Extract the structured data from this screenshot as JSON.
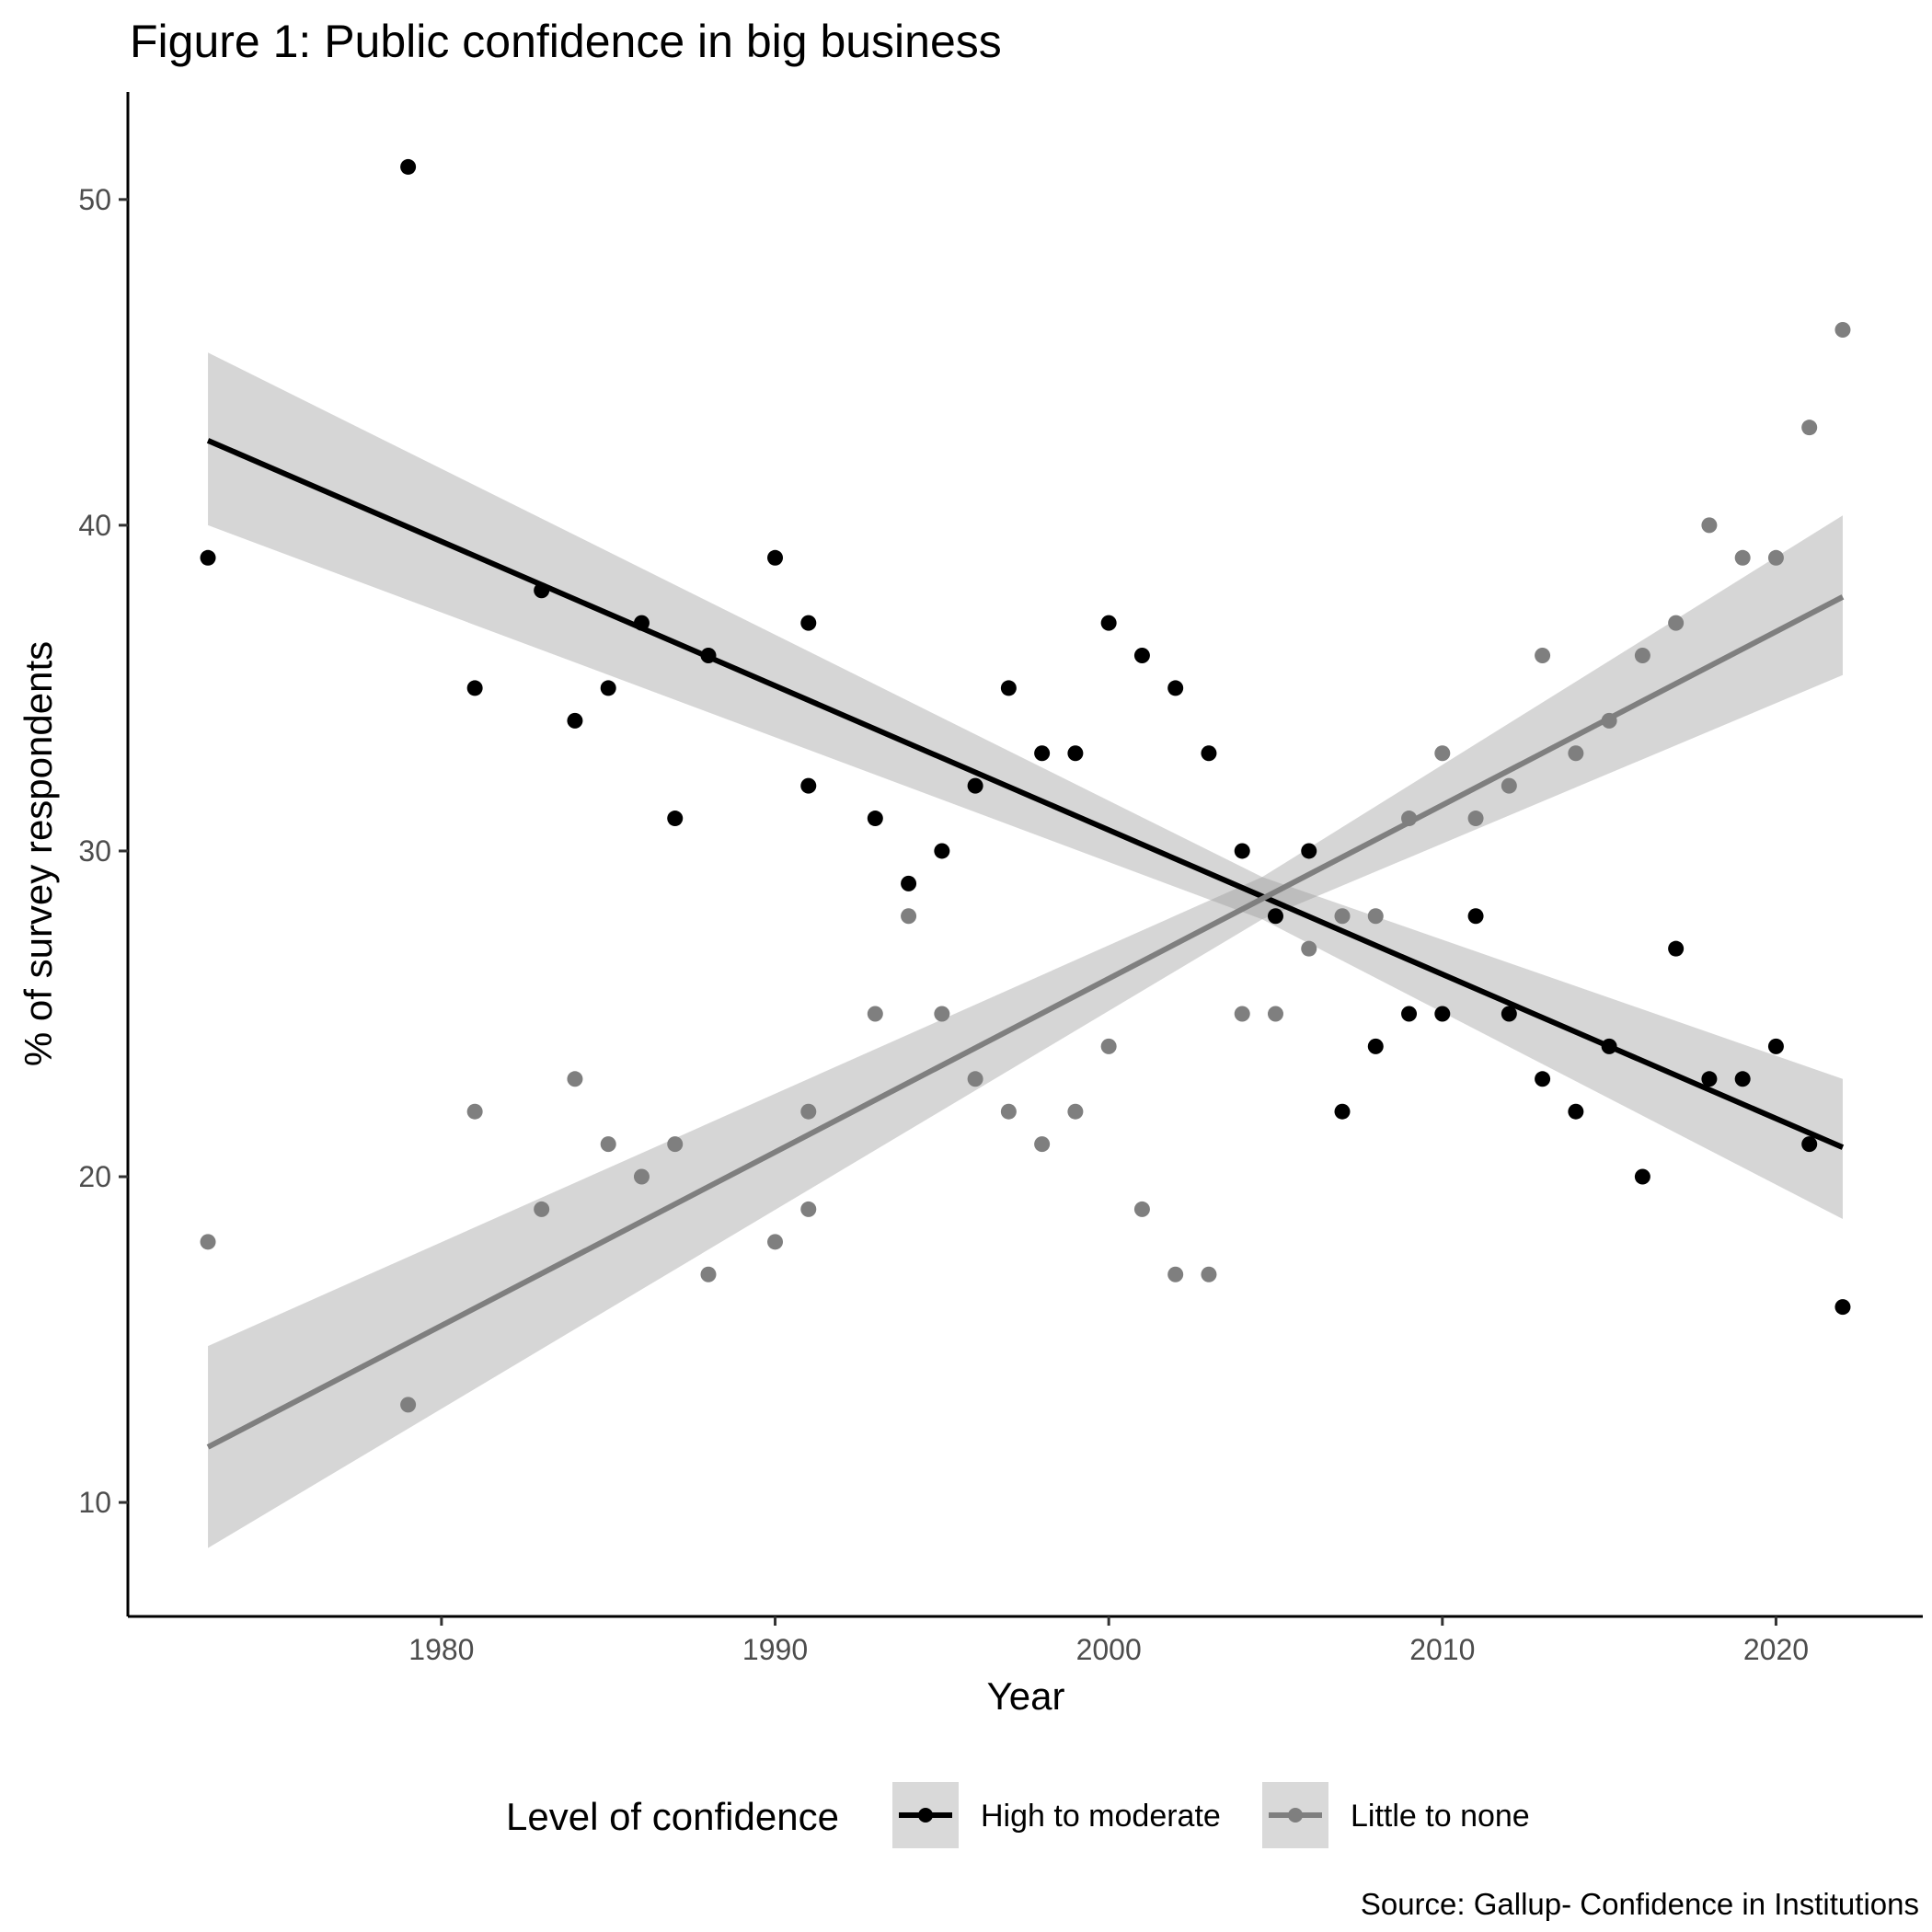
{
  "chart_data": {
    "type": "scatter",
    "title": "Figure 1: Public confidence in big business",
    "xlabel": "Year",
    "ylabel": "% of survey respondents",
    "caption": "Source: Gallup- Confidence in Institutions",
    "xlim": [
      1970.6,
      2024.4
    ],
    "ylim": [
      6.5,
      53.3
    ],
    "x_ticks": [
      1980,
      1990,
      2000,
      2010,
      2020
    ],
    "y_ticks": [
      10,
      20,
      30,
      40,
      50
    ],
    "grid": false,
    "legend": {
      "title": "Level of confidence",
      "position": "bottom",
      "entries": [
        "High to moderate",
        "Little to none"
      ]
    },
    "series": [
      {
        "name": "High to moderate",
        "color": "#000000",
        "points": [
          [
            1973,
            39
          ],
          [
            1979,
            51
          ],
          [
            1981,
            35
          ],
          [
            1983,
            38
          ],
          [
            1984,
            34
          ],
          [
            1985,
            35
          ],
          [
            1986,
            37
          ],
          [
            1987,
            31
          ],
          [
            1988,
            36
          ],
          [
            1990,
            39
          ],
          [
            1991,
            37
          ],
          [
            1991,
            32
          ],
          [
            1993,
            31
          ],
          [
            1994,
            29
          ],
          [
            1995,
            30
          ],
          [
            1996,
            32
          ],
          [
            1997,
            35
          ],
          [
            1998,
            33
          ],
          [
            1999,
            33
          ],
          [
            2000,
            37
          ],
          [
            2001,
            36
          ],
          [
            2002,
            35
          ],
          [
            2003,
            33
          ],
          [
            2004,
            30
          ],
          [
            2005,
            28
          ],
          [
            2006,
            30
          ],
          [
            2007,
            22
          ],
          [
            2008,
            24
          ],
          [
            2009,
            25
          ],
          [
            2010,
            25
          ],
          [
            2011,
            28
          ],
          [
            2012,
            25
          ],
          [
            2013,
            23
          ],
          [
            2014,
            22
          ],
          [
            2015,
            24
          ],
          [
            2016,
            20
          ],
          [
            2017,
            27
          ],
          [
            2018,
            23
          ],
          [
            2019,
            23
          ],
          [
            2020,
            24
          ],
          [
            2021,
            21
          ],
          [
            2022,
            16
          ]
        ],
        "trend": {
          "x": [
            1973,
            2022
          ],
          "y": [
            42.6,
            20.9
          ]
        },
        "band": {
          "x": [
            1973,
            2004.6,
            2022
          ],
          "lower": [
            40.0,
            27.9,
            18.7
          ],
          "upper": [
            45.3,
            29.2,
            23.0
          ]
        }
      },
      {
        "name": "Little to none",
        "color": "#7f7f7f",
        "points": [
          [
            1973,
            18
          ],
          [
            1979,
            13
          ],
          [
            1981,
            22
          ],
          [
            1983,
            19
          ],
          [
            1984,
            23
          ],
          [
            1985,
            21
          ],
          [
            1986,
            20
          ],
          [
            1987,
            21
          ],
          [
            1988,
            17
          ],
          [
            1990,
            18
          ],
          [
            1991,
            22
          ],
          [
            1991,
            19
          ],
          [
            1993,
            25
          ],
          [
            1994,
            28
          ],
          [
            1995,
            25
          ],
          [
            1996,
            23
          ],
          [
            1997,
            22
          ],
          [
            1998,
            21
          ],
          [
            1999,
            22
          ],
          [
            2000,
            24
          ],
          [
            2001,
            19
          ],
          [
            2002,
            17
          ],
          [
            2003,
            17
          ],
          [
            2004,
            25
          ],
          [
            2005,
            25
          ],
          [
            2006,
            27
          ],
          [
            2007,
            28
          ],
          [
            2008,
            28
          ],
          [
            2009,
            31
          ],
          [
            2010,
            33
          ],
          [
            2011,
            31
          ],
          [
            2012,
            32
          ],
          [
            2013,
            36
          ],
          [
            2014,
            33
          ],
          [
            2015,
            34
          ],
          [
            2016,
            36
          ],
          [
            2017,
            37
          ],
          [
            2018,
            40
          ],
          [
            2019,
            39
          ],
          [
            2020,
            39
          ],
          [
            2021,
            43
          ],
          [
            2022,
            46
          ]
        ],
        "trend": {
          "x": [
            1973,
            2022
          ],
          "y": [
            11.7,
            37.8
          ]
        },
        "band": {
          "x": [
            1973,
            2004.6,
            2022
          ],
          "lower": [
            8.6,
            27.9,
            35.4
          ],
          "upper": [
            14.8,
            29.2,
            40.3
          ]
        }
      }
    ]
  }
}
